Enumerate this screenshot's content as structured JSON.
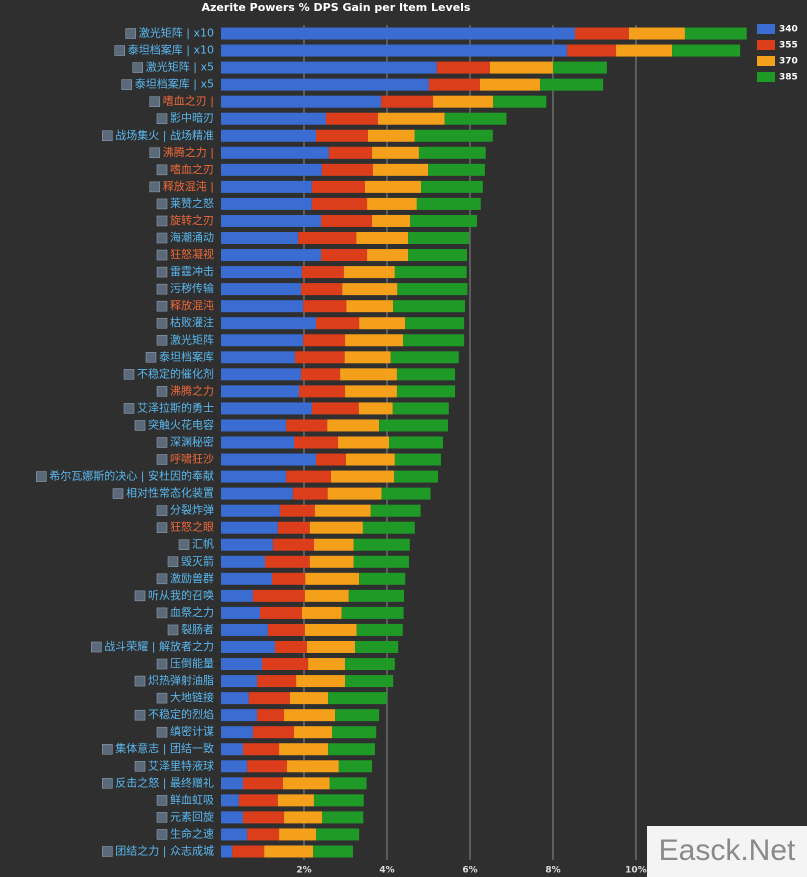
{
  "chart_data": {
    "type": "stacked-barh",
    "title": "Azerite Powers % DPS Gain per Item Levels",
    "watermark": "Easck.Net",
    "legend": "top-right",
    "grid": true,
    "xlim": [
      0,
      12.7
    ],
    "xticks": [
      {
        "value": 2,
        "label": "2%"
      },
      {
        "value": 4,
        "label": "4%"
      },
      {
        "value": 6,
        "label": "6%"
      },
      {
        "value": 8,
        "label": "8%"
      },
      {
        "value": 10,
        "label": "10%"
      }
    ],
    "categories": [
      "激光矩阵 | x10",
      "泰坦档案库 | x10",
      "激光矩阵 | x5",
      "泰坦档案库 | x5",
      "嗜血之刃 |",
      "影中暗刃",
      "战场集火 | 战场精准",
      "沸腾之力 |",
      "嗜血之刃",
      "释放混沌 |",
      "莱赞之怒",
      "旋转之刃",
      "海潮涌动",
      "狂怒凝视",
      "雷霆冲击",
      "污秽传输",
      "释放混沌",
      "枯败灌注",
      "激光矩阵",
      "泰坦档案库",
      "不稳定的催化剂",
      "沸腾之力",
      "艾泽拉斯的勇士",
      "突触火花电容",
      "深渊秘密",
      "呼啸狂沙",
      "希尔瓦娜斯的决心 | 安杜因的奉献",
      "相对性常态化装置",
      "分裂炸弹",
      "狂怒之眼",
      "汇帆",
      "毁灭箭",
      "激励兽群",
      "听从我的召唤",
      "血祭之力",
      "裂肠者",
      "战斗荣耀 | 解放者之力",
      "压倒能量",
      "炽热弹射油脂",
      "大地链接",
      "不稳定的烈焰",
      "缜密计谋",
      "集体意志 | 团结一致",
      "艾泽里特液球",
      "反击之怒 | 最终赠礼",
      "鲜血虹吸",
      "元素回旋",
      "生命之速",
      "团结之力 | 众志成城"
    ],
    "category_colors": [
      "#5ab8f0",
      "#5ab8f0",
      "#5ab8f0",
      "#5ab8f0",
      "#f0693a",
      "#5ab8f0",
      "#5ab8f0",
      "#f0693a",
      "#f0693a",
      "#f0693a",
      "#5ab8f0",
      "#f0693a",
      "#5ab8f0",
      "#f0693a",
      "#5ab8f0",
      "#5ab8f0",
      "#f0693a",
      "#5ab8f0",
      "#5ab8f0",
      "#5ab8f0",
      "#5ab8f0",
      "#f0693a",
      "#5ab8f0",
      "#5ab8f0",
      "#5ab8f0",
      "#f0693a",
      "#5ab8f0",
      "#5ab8f0",
      "#5ab8f0",
      "#f0693a",
      "#5ab8f0",
      "#5ab8f0",
      "#5ab8f0",
      "#5ab8f0",
      "#5ab8f0",
      "#5ab8f0",
      "#5ab8f0",
      "#5ab8f0",
      "#5ab8f0",
      "#5ab8f0",
      "#5ab8f0",
      "#5ab8f0",
      "#5ab8f0",
      "#5ab8f0",
      "#5ab8f0",
      "#5ab8f0",
      "#5ab8f0",
      "#5ab8f0",
      "#5ab8f0"
    ],
    "series": [
      {
        "name": "340",
        "color": "#3a6cd2",
        "values": [
          8.53,
          8.34,
          5.2,
          5.01,
          3.86,
          2.53,
          2.29,
          2.6,
          2.43,
          2.19,
          2.19,
          2.41,
          1.86,
          2.41,
          1.95,
          1.93,
          1.98,
          2.29,
          1.98,
          1.78,
          1.93,
          1.88,
          2.19,
          1.57,
          1.76,
          2.29,
          1.57,
          1.73,
          1.42,
          1.37,
          1.25,
          1.06,
          1.23,
          0.77,
          0.94,
          1.13,
          1.3,
          0.99,
          0.87,
          0.67,
          0.87,
          0.77,
          0.53,
          0.63,
          0.53,
          0.43,
          0.53,
          0.63,
          0.27
        ]
      },
      {
        "name": "355",
        "color": "#dc3e1c",
        "values": [
          1.3,
          1.18,
          1.28,
          1.23,
          1.25,
          1.25,
          1.25,
          1.04,
          1.23,
          1.28,
          1.33,
          1.23,
          1.4,
          1.11,
          1.01,
          0.99,
          1.04,
          1.04,
          1.01,
          1.2,
          0.94,
          1.11,
          1.13,
          0.99,
          1.06,
          0.72,
          1.08,
          0.84,
          0.84,
          0.77,
          0.99,
          1.08,
          0.8,
          1.25,
          1.01,
          0.89,
          0.77,
          1.11,
          0.94,
          0.99,
          0.65,
          0.99,
          0.87,
          0.96,
          0.96,
          0.94,
          0.99,
          0.77,
          0.77
        ]
      },
      {
        "name": "370",
        "color": "#f5a01a",
        "values": [
          1.35,
          1.35,
          1.52,
          1.45,
          1.45,
          1.61,
          1.13,
          1.13,
          1.33,
          1.35,
          1.2,
          0.92,
          1.25,
          0.99,
          1.23,
          1.33,
          1.13,
          1.11,
          1.4,
          1.11,
          1.37,
          1.25,
          0.82,
          1.25,
          1.23,
          1.18,
          1.52,
          1.3,
          1.35,
          1.28,
          0.96,
          1.06,
          1.3,
          1.06,
          0.96,
          1.25,
          1.16,
          0.89,
          1.18,
          0.92,
          1.23,
          0.92,
          1.18,
          1.25,
          1.13,
          0.87,
          0.92,
          0.89,
          1.18
        ]
      },
      {
        "name": "385",
        "color": "#1f9a26",
        "values": [
          1.49,
          1.64,
          1.3,
          1.52,
          1.28,
          1.49,
          1.88,
          1.61,
          1.37,
          1.49,
          1.54,
          1.61,
          1.47,
          1.42,
          1.73,
          1.69,
          1.73,
          1.42,
          1.47,
          1.64,
          1.4,
          1.4,
          1.35,
          1.66,
          1.3,
          1.11,
          1.06,
          1.18,
          1.2,
          1.25,
          1.35,
          1.33,
          1.11,
          1.33,
          1.49,
          1.11,
          1.04,
          1.2,
          1.16,
          1.42,
          1.06,
          1.06,
          1.13,
          0.8,
          0.89,
          1.2,
          0.99,
          1.04,
          0.96
        ]
      }
    ]
  }
}
